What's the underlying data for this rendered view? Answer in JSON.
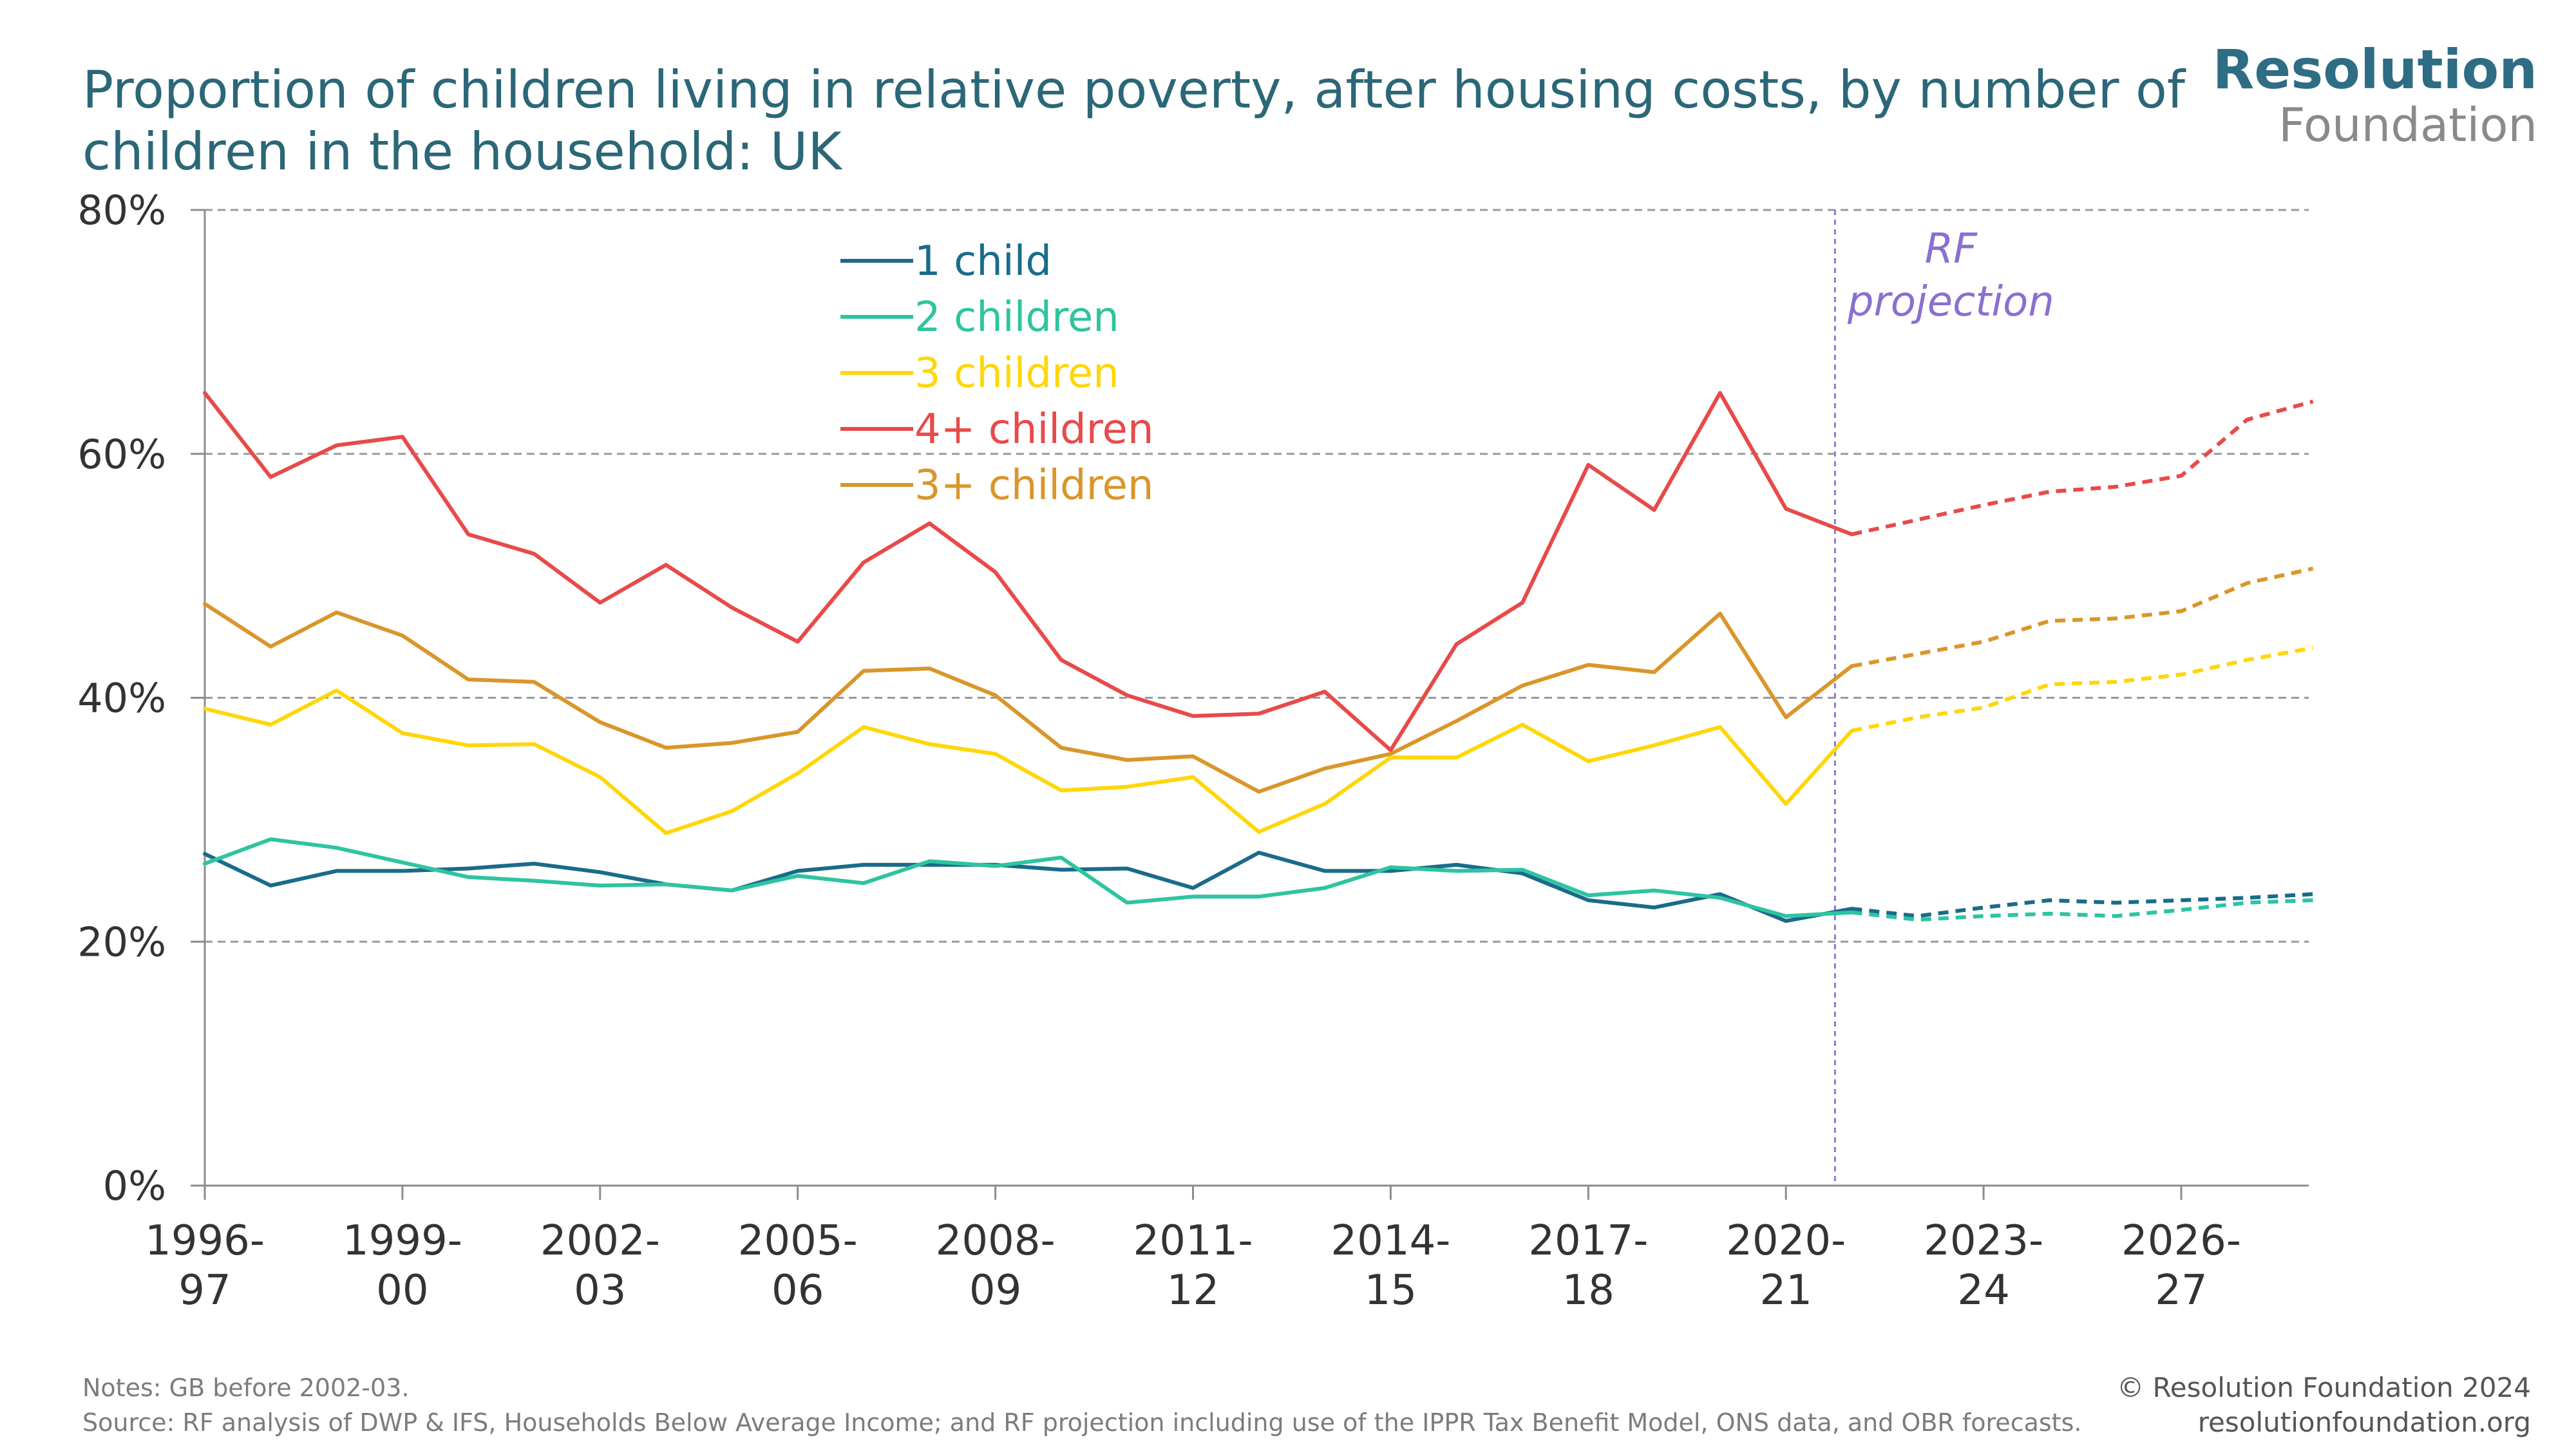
{
  "title": "Proportion of children living in relative poverty, after housing costs, by number of children in the household: UK",
  "logo": {
    "line1": "Resolution",
    "line2": "Foundation"
  },
  "notes": "Notes: GB before 2002-03.",
  "source": "Source: RF analysis of DWP & IFS, Households Below Average Income; and RF projection including use of the IPPR Tax Benefit Model, ONS data, and OBR forecasts.",
  "credit": {
    "copyright": "© Resolution Foundation 2024",
    "website": "resolutionfoundation.org"
  },
  "chart_data": {
    "type": "line",
    "title": "Proportion of children living in relative poverty, after housing costs, by number of children in the household: UK",
    "ylim": [
      0,
      80
    ],
    "yticks": [
      "0%",
      "20%",
      "40%",
      "60%",
      "80%"
    ],
    "ytick_values": [
      0,
      20,
      40,
      60,
      80
    ],
    "x": [
      "1996-97",
      "1997-98",
      "1998-99",
      "1999-00",
      "2000-01",
      "2001-02",
      "2002-03",
      "2003-04",
      "2004-05",
      "2005-06",
      "2006-07",
      "2007-08",
      "2008-09",
      "2009-10",
      "2010-11",
      "2011-12",
      "2012-13",
      "2013-14",
      "2014-15",
      "2015-16",
      "2016-17",
      "2017-18",
      "2018-19",
      "2019-20",
      "2020-21",
      "2021-22",
      "2022-23",
      "2023-24",
      "2024-25",
      "2025-26",
      "2026-27",
      "2027-28",
      "2028-29"
    ],
    "xtick_labels": [
      {
        "index": 0,
        "line1": "1996-",
        "line2": "97"
      },
      {
        "index": 3,
        "line1": "1999-",
        "line2": "00"
      },
      {
        "index": 6,
        "line1": "2002-",
        "line2": "03"
      },
      {
        "index": 9,
        "line1": "2005-",
        "line2": "06"
      },
      {
        "index": 12,
        "line1": "2008-",
        "line2": "09"
      },
      {
        "index": 15,
        "line1": "2011-",
        "line2": "12"
      },
      {
        "index": 18,
        "line1": "2014-",
        "line2": "15"
      },
      {
        "index": 21,
        "line1": "2017-",
        "line2": "18"
      },
      {
        "index": 24,
        "line1": "2020-",
        "line2": "21"
      },
      {
        "index": 27,
        "line1": "2023-",
        "line2": "24"
      },
      {
        "index": 30,
        "line1": "2026-",
        "line2": "27"
      }
    ],
    "projection_start_index": 25,
    "projection_label": [
      "RF",
      "projection"
    ],
    "legend_placement": "top-center",
    "series": [
      {
        "name": "1 child",
        "color": "#1a6b8a",
        "values": [
          27.2,
          24.6,
          25.8,
          25.8,
          26.0,
          26.4,
          25.7,
          24.7,
          24.2,
          25.8,
          26.3,
          26.3,
          26.3,
          25.9,
          26.0,
          24.4,
          27.3,
          25.8,
          25.8,
          26.3,
          25.6,
          23.4,
          22.8,
          23.9,
          21.7,
          22.7,
          22.1,
          22.8,
          23.4,
          23.2,
          23.4,
          23.6,
          23.9
        ]
      },
      {
        "name": "2 children",
        "color": "#2ec4a0",
        "values": [
          26.4,
          28.4,
          27.7,
          26.5,
          25.3,
          25.0,
          24.6,
          24.7,
          24.2,
          25.4,
          24.8,
          26.6,
          26.2,
          26.9,
          23.2,
          23.7,
          23.7,
          24.4,
          26.1,
          25.8,
          25.9,
          23.8,
          24.2,
          23.6,
          22.1,
          22.4,
          21.8,
          22.1,
          22.3,
          22.1,
          22.6,
          23.2,
          23.4
        ]
      },
      {
        "name": "3 children",
        "color": "#ffd60a",
        "values": [
          39.1,
          37.8,
          40.6,
          37.1,
          36.1,
          36.2,
          33.5,
          28.9,
          30.7,
          33.8,
          37.6,
          36.2,
          35.4,
          32.4,
          32.7,
          33.5,
          29.0,
          31.3,
          35.1,
          35.1,
          37.8,
          34.8,
          36.1,
          37.6,
          31.3,
          37.3,
          38.4,
          39.2,
          41.1,
          41.3,
          41.9,
          43.1,
          44.1
        ]
      },
      {
        "name": "4+ children",
        "color": "#e84a4a",
        "values": [
          65.0,
          58.1,
          60.7,
          61.4,
          53.4,
          51.8,
          47.8,
          50.9,
          47.4,
          44.6,
          51.1,
          54.3,
          50.3,
          43.1,
          40.2,
          38.5,
          38.7,
          40.5,
          35.7,
          44.4,
          47.8,
          59.1,
          55.4,
          65.0,
          55.5,
          53.4,
          54.6,
          55.8,
          56.9,
          57.3,
          58.2,
          62.8,
          64.3
        ]
      },
      {
        "name": "3+ children",
        "color": "#d9962a",
        "values": [
          47.7,
          44.2,
          47.0,
          45.1,
          41.5,
          41.3,
          38.0,
          35.9,
          36.3,
          37.2,
          42.2,
          42.4,
          40.2,
          35.9,
          34.9,
          35.2,
          32.3,
          34.2,
          35.4,
          38.1,
          41.0,
          42.7,
          42.1,
          46.9,
          38.4,
          42.6,
          43.6,
          44.6,
          46.3,
          46.5,
          47.1,
          49.4,
          50.6
        ]
      }
    ]
  }
}
